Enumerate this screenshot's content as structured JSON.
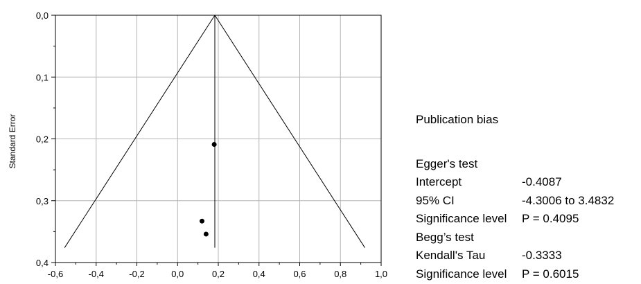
{
  "chart_data": {
    "type": "scatter",
    "subtype": "funnel-plot",
    "title": "",
    "xlabel": "",
    "ylabel": "Standard Error",
    "xlim": [
      -0.6,
      1.0
    ],
    "ylim": [
      0.0,
      0.4
    ],
    "y_inverted": true,
    "grid": true,
    "xticks": [
      -0.6,
      -0.4,
      -0.2,
      0.0,
      0.2,
      0.4,
      0.6,
      0.8,
      1.0
    ],
    "xtick_labels": [
      "-0,6",
      "-0,4",
      "-0,2",
      "0,0",
      "0,2",
      "0,4",
      "0,6",
      "0,8",
      "1,0"
    ],
    "yticks": [
      0.0,
      0.1,
      0.2,
      0.3,
      0.4
    ],
    "ytick_labels": [
      "0,0",
      "0,1",
      "0,2",
      "0,3",
      "0,4"
    ],
    "pooled_estimate": 0.183,
    "funnel_lines": [
      {
        "x": [
          0.183,
          -0.555
        ],
        "y": [
          0.0,
          0.376
        ]
      },
      {
        "x": [
          0.183,
          0.92
        ],
        "y": [
          0.0,
          0.376
        ]
      },
      {
        "x": [
          0.183,
          0.183
        ],
        "y": [
          0.0,
          0.376
        ]
      }
    ],
    "points": [
      {
        "x": 0.18,
        "y": 0.209
      },
      {
        "x": 0.12,
        "y": 0.333
      },
      {
        "x": 0.14,
        "y": 0.354
      }
    ],
    "colors": {
      "line": "#000000",
      "grid": "#b4b4b4",
      "point": "#000000"
    }
  },
  "stats": {
    "title": "Publication bias",
    "egger_heading": "Egger's test",
    "intercept_label": "Intercept",
    "intercept_value": "-0.4087",
    "ci_label": "95% CI",
    "ci_value": "-4.3006 to 3.4832",
    "egger_sig_label": "Significance level",
    "egger_sig_value": "P = 0.4095",
    "begg_heading": "Begg’s test",
    "tau_label": "Kendall's Tau",
    "tau_value": "-0.3333",
    "begg_sig_label": "Significance level",
    "begg_sig_value": "P = 0.6015"
  }
}
